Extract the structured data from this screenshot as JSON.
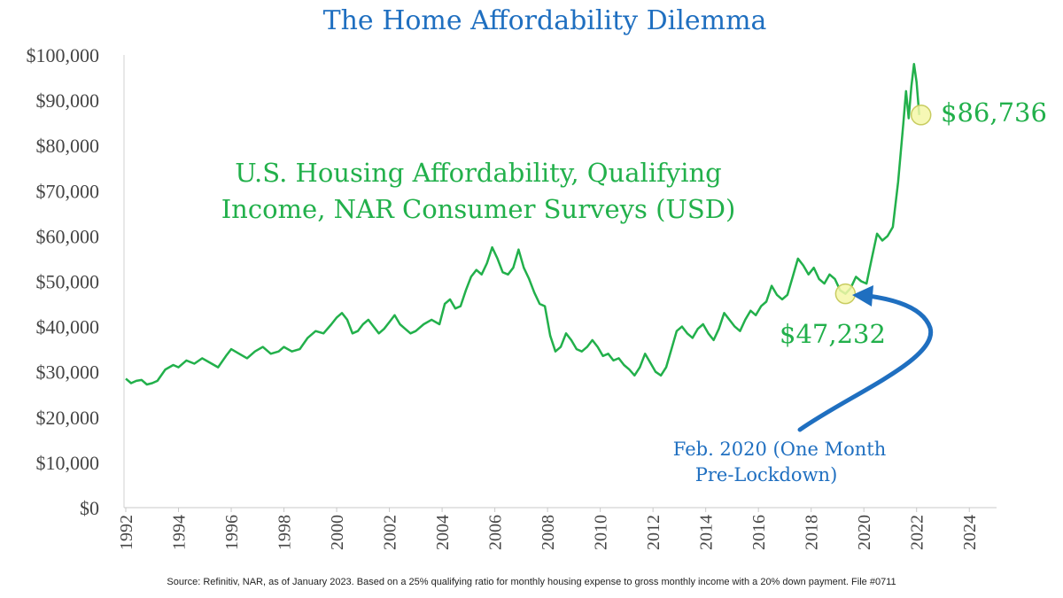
{
  "chart_data": {
    "type": "line",
    "title": "The Home Affordability Dilemma",
    "series_label_lines": [
      "U.S. Housing Affordability, Qualifying",
      "Income, NAR Consumer Surveys (USD)"
    ],
    "ylim": [
      0,
      100000
    ],
    "y_ticks": [
      {
        "v": 0,
        "label": "$0"
      },
      {
        "v": 10000,
        "label": "$10,000"
      },
      {
        "v": 20000,
        "label": "$20,000"
      },
      {
        "v": 30000,
        "label": "$30,000"
      },
      {
        "v": 40000,
        "label": "$40,000"
      },
      {
        "v": 50000,
        "label": "$50,000"
      },
      {
        "v": 60000,
        "label": "$60,000"
      },
      {
        "v": 70000,
        "label": "$70,000"
      },
      {
        "v": 80000,
        "label": "$80,000"
      },
      {
        "v": 90000,
        "label": "$90,000"
      },
      {
        "v": 100000,
        "label": "$100,000"
      }
    ],
    "xlim": [
      1992,
      2025
    ],
    "x_ticks": [
      "1992",
      "1994",
      "1996",
      "1998",
      "2000",
      "2002",
      "2004",
      "2006",
      "2008",
      "2010",
      "2012",
      "2014",
      "2016",
      "2018",
      "2020",
      "2022",
      "2024"
    ],
    "series": [
      {
        "color": "#22b04b",
        "points": [
          [
            1992.0,
            28500
          ],
          [
            1992.2,
            27500
          ],
          [
            1992.4,
            28000
          ],
          [
            1992.6,
            28200
          ],
          [
            1992.8,
            27200
          ],
          [
            1993.0,
            27500
          ],
          [
            1993.2,
            28000
          ],
          [
            1993.5,
            30500
          ],
          [
            1993.8,
            31500
          ],
          [
            1994.0,
            31000
          ],
          [
            1994.3,
            32500
          ],
          [
            1994.6,
            31800
          ],
          [
            1994.9,
            33000
          ],
          [
            1995.2,
            32000
          ],
          [
            1995.5,
            31000
          ],
          [
            1995.8,
            33500
          ],
          [
            1996.0,
            35000
          ],
          [
            1996.3,
            34000
          ],
          [
            1996.6,
            33000
          ],
          [
            1996.9,
            34500
          ],
          [
            1997.2,
            35500
          ],
          [
            1997.5,
            34000
          ],
          [
            1997.8,
            34500
          ],
          [
            1998.0,
            35500
          ],
          [
            1998.3,
            34500
          ],
          [
            1998.6,
            35000
          ],
          [
            1998.9,
            37500
          ],
          [
            1999.2,
            39000
          ],
          [
            1999.5,
            38500
          ],
          [
            1999.8,
            40500
          ],
          [
            2000.0,
            42000
          ],
          [
            2000.2,
            43000
          ],
          [
            2000.4,
            41500
          ],
          [
            2000.6,
            38500
          ],
          [
            2000.8,
            39000
          ],
          [
            2001.0,
            40500
          ],
          [
            2001.2,
            41500
          ],
          [
            2001.4,
            40000
          ],
          [
            2001.6,
            38500
          ],
          [
            2001.8,
            39500
          ],
          [
            2002.0,
            41000
          ],
          [
            2002.2,
            42500
          ],
          [
            2002.4,
            40500
          ],
          [
            2002.6,
            39500
          ],
          [
            2002.8,
            38500
          ],
          [
            2003.0,
            39000
          ],
          [
            2003.3,
            40500
          ],
          [
            2003.6,
            41500
          ],
          [
            2003.9,
            40500
          ],
          [
            2004.1,
            45000
          ],
          [
            2004.3,
            46000
          ],
          [
            2004.5,
            44000
          ],
          [
            2004.7,
            44500
          ],
          [
            2004.9,
            48000
          ],
          [
            2005.1,
            51000
          ],
          [
            2005.3,
            52500
          ],
          [
            2005.5,
            51500
          ],
          [
            2005.7,
            54000
          ],
          [
            2005.9,
            57500
          ],
          [
            2006.1,
            55000
          ],
          [
            2006.3,
            52000
          ],
          [
            2006.5,
            51500
          ],
          [
            2006.7,
            53000
          ],
          [
            2006.9,
            57000
          ],
          [
            2007.1,
            53000
          ],
          [
            2007.3,
            50500
          ],
          [
            2007.5,
            47500
          ],
          [
            2007.7,
            45000
          ],
          [
            2007.9,
            44500
          ],
          [
            2008.1,
            38000
          ],
          [
            2008.3,
            34500
          ],
          [
            2008.5,
            35500
          ],
          [
            2008.7,
            38500
          ],
          [
            2008.9,
            37000
          ],
          [
            2009.1,
            35000
          ],
          [
            2009.3,
            34500
          ],
          [
            2009.5,
            35500
          ],
          [
            2009.7,
            37000
          ],
          [
            2009.9,
            35500
          ],
          [
            2010.1,
            33500
          ],
          [
            2010.3,
            34000
          ],
          [
            2010.5,
            32500
          ],
          [
            2010.7,
            33000
          ],
          [
            2010.9,
            31500
          ],
          [
            2011.1,
            30500
          ],
          [
            2011.3,
            29200
          ],
          [
            2011.5,
            31000
          ],
          [
            2011.7,
            34000
          ],
          [
            2011.9,
            32000
          ],
          [
            2012.1,
            30000
          ],
          [
            2012.3,
            29200
          ],
          [
            2012.5,
            31000
          ],
          [
            2012.7,
            35000
          ],
          [
            2012.9,
            39000
          ],
          [
            2013.1,
            40000
          ],
          [
            2013.3,
            38500
          ],
          [
            2013.5,
            37500
          ],
          [
            2013.7,
            39500
          ],
          [
            2013.9,
            40500
          ],
          [
            2014.1,
            38500
          ],
          [
            2014.3,
            37000
          ],
          [
            2014.5,
            39500
          ],
          [
            2014.7,
            43000
          ],
          [
            2014.9,
            41500
          ],
          [
            2015.1,
            40000
          ],
          [
            2015.3,
            39000
          ],
          [
            2015.5,
            41500
          ],
          [
            2015.7,
            43500
          ],
          [
            2015.9,
            42500
          ],
          [
            2016.1,
            44500
          ],
          [
            2016.3,
            45500
          ],
          [
            2016.5,
            49000
          ],
          [
            2016.7,
            47000
          ],
          [
            2016.9,
            46000
          ],
          [
            2017.1,
            47000
          ],
          [
            2017.3,
            51000
          ],
          [
            2017.5,
            55000
          ],
          [
            2017.7,
            53500
          ],
          [
            2017.9,
            51500
          ],
          [
            2018.1,
            53000
          ],
          [
            2018.3,
            50500
          ],
          [
            2018.5,
            49500
          ],
          [
            2018.7,
            51500
          ],
          [
            2018.9,
            50500
          ],
          [
            2019.1,
            48000
          ],
          [
            2019.3,
            47232
          ],
          [
            2019.5,
            48500
          ],
          [
            2019.7,
            51000
          ],
          [
            2019.9,
            50000
          ],
          [
            2020.1,
            49500
          ],
          [
            2020.3,
            55000
          ],
          [
            2020.5,
            60500
          ],
          [
            2020.7,
            59000
          ],
          [
            2020.9,
            60000
          ],
          [
            2021.1,
            62000
          ],
          [
            2021.3,
            72000
          ],
          [
            2021.5,
            85000
          ],
          [
            2021.6,
            92000
          ],
          [
            2021.7,
            86000
          ],
          [
            2021.8,
            93000
          ],
          [
            2021.9,
            98000
          ],
          [
            2022.0,
            94000
          ],
          [
            2022.1,
            86736
          ]
        ]
      }
    ],
    "annotations": {
      "end_value": "$86,736",
      "feb2020_value": "$47,232",
      "feb2020_note_lines": [
        "Feb. 2020 (One Month",
        "Pre-Lockdown)"
      ]
    },
    "source": "Source: Refinitiv, NAR, as of January 2023. Based on a 25% qualifying ratio for monthly housing expense to gross monthly income with a 20% down payment. File #0711"
  },
  "colors": {
    "line": "#22b04b",
    "title": "#1f6fc0",
    "arrow": "#1f6fc0",
    "highlight_fill": "#f4f7a8"
  }
}
